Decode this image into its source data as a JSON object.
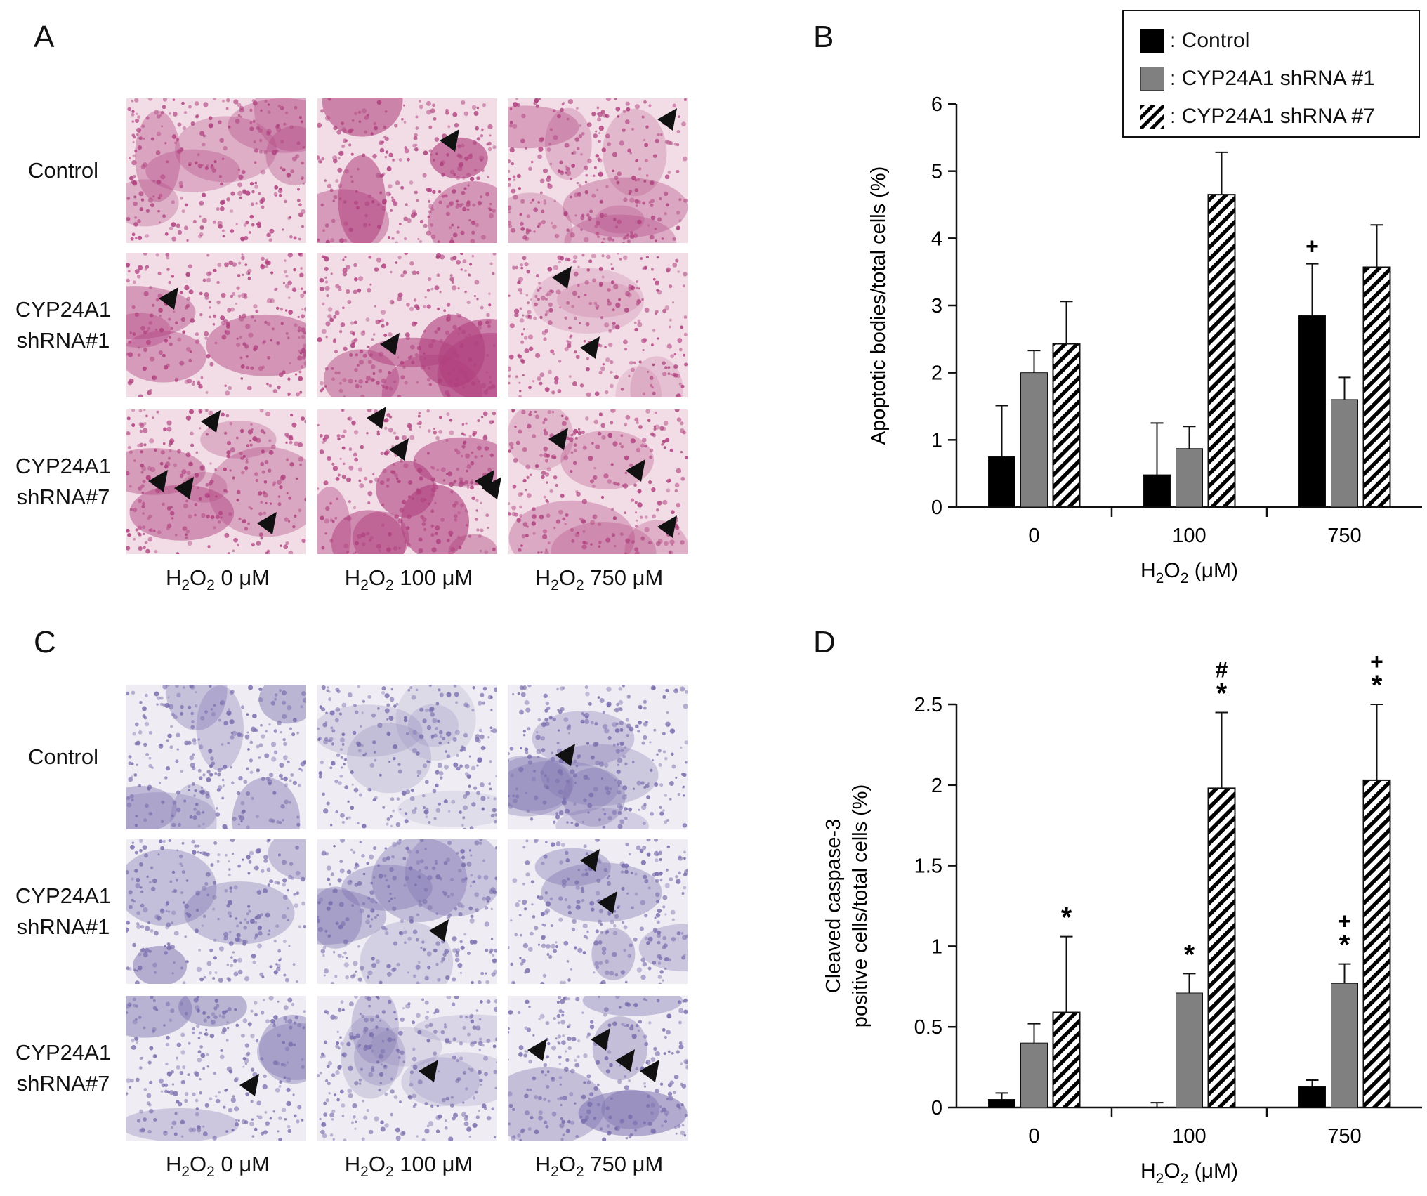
{
  "panels": {
    "A": {
      "letter": "A",
      "row_labels": [
        "Control",
        "CYP24A1\nshRNA#1",
        "CYP24A1\nshRNA#7"
      ],
      "col_labels": [
        {
          "pre": "H",
          "s1": "2",
          "mid": "O",
          "s2": "2",
          "post": " 0 μM"
        },
        {
          "pre": "H",
          "s1": "2",
          "mid": "O",
          "s2": "2",
          "post": " 100 μM"
        },
        {
          "pre": "H",
          "s1": "2",
          "mid": "O",
          "s2": "2",
          "post": " 750 μM"
        }
      ]
    },
    "C": {
      "letter": "C",
      "row_labels": [
        "Control",
        "CYP24A1\nshRNA#1",
        "CYP24A1\nshRNA#7"
      ],
      "col_labels": [
        {
          "pre": "H",
          "s1": "2",
          "mid": "O",
          "s2": "2",
          "post": " 0 μM"
        },
        {
          "pre": "H",
          "s1": "2",
          "mid": "O",
          "s2": "2",
          "post": " 100 μM"
        },
        {
          "pre": "H",
          "s1": "2",
          "mid": "O",
          "s2": "2",
          "post": " 750 μM"
        }
      ]
    },
    "B": {
      "letter": "B"
    },
    "D": {
      "letter": "D"
    }
  },
  "legend": {
    "entries": [
      {
        "label": ": Control",
        "style": "solid-black"
      },
      {
        "label": ": CYP24A1 shRNA #1",
        "style": "solid-gray"
      },
      {
        "label": ": CYP24A1 shRNA #7",
        "style": "hatched"
      }
    ]
  },
  "colors": {
    "control": "#000000",
    "shrna1": "#808080",
    "shrna7_hatch": "#000000",
    "he_stain_bg": "#f2dde6",
    "he_stain_cell": "#b0417f",
    "ihc_bg": "#efedf3",
    "ihc_cell": "#7a6fae"
  },
  "chart_data": [
    {
      "panel": "B",
      "type": "bar",
      "categories": [
        "0",
        "100",
        "750"
      ],
      "series": [
        {
          "name": "Control",
          "values": [
            0.75,
            0.48,
            2.85
          ],
          "errors": [
            0.76,
            0.77,
            0.77
          ]
        },
        {
          "name": "CYP24A1 shRNA #1",
          "values": [
            2.0,
            0.87,
            1.6
          ],
          "errors": [
            0.33,
            0.33,
            0.33
          ]
        },
        {
          "name": "CYP24A1 shRNA #7",
          "values": [
            2.43,
            4.65,
            3.57
          ],
          "errors": [
            0.63,
            0.63,
            0.63
          ]
        }
      ],
      "annotations": [
        {
          "category": "750",
          "series": "Control",
          "text": "+"
        }
      ],
      "xlabel": {
        "pre": "H",
        "s1": "2",
        "mid": "O",
        "s2": "2",
        "post": " (μM)"
      },
      "ylabel": "Apoptotic bodies/total cells (%)",
      "ylim": [
        0,
        6
      ],
      "yticks": [
        "0",
        "1",
        "2",
        "3",
        "4",
        "5",
        "6"
      ],
      "ytick_values": [
        0,
        1,
        2,
        3,
        4,
        5,
        6
      ]
    },
    {
      "panel": "D",
      "type": "bar",
      "categories": [
        "0",
        "100",
        "750"
      ],
      "series": [
        {
          "name": "Control",
          "values": [
            0.05,
            0.0,
            0.13
          ],
          "errors": [
            0.04,
            0.03,
            0.04
          ]
        },
        {
          "name": "CYP24A1 shRNA #1",
          "values": [
            0.4,
            0.71,
            0.77
          ],
          "errors": [
            0.12,
            0.12,
            0.12
          ]
        },
        {
          "name": "CYP24A1 shRNA #7",
          "values": [
            0.59,
            1.98,
            2.03
          ],
          "errors": [
            0.47,
            0.47,
            0.47
          ]
        }
      ],
      "annotations": [
        {
          "category": "0",
          "series": "CYP24A1 shRNA #7",
          "text": "*"
        },
        {
          "category": "100",
          "series": "CYP24A1 shRNA #1",
          "text": "*"
        },
        {
          "category": "100",
          "series": "CYP24A1 shRNA #7",
          "text": "#\n*"
        },
        {
          "category": "750",
          "series": "CYP24A1 shRNA #1",
          "text": "+\n*"
        },
        {
          "category": "750",
          "series": "CYP24A1 shRNA #7",
          "text": "+\n*"
        }
      ],
      "xlabel": {
        "pre": "H",
        "s1": "2",
        "mid": "O",
        "s2": "2",
        "post": " (μM)"
      },
      "ylabel": "Cleaved caspase-3\npositive cells/total cells (%)",
      "ylim": [
        0,
        2.5
      ],
      "yticks": [
        "0",
        "0.5",
        "1",
        "1.5",
        "2",
        "2.5"
      ],
      "ytick_values": [
        0,
        0.5,
        1,
        1.5,
        2,
        2.5
      ]
    }
  ]
}
